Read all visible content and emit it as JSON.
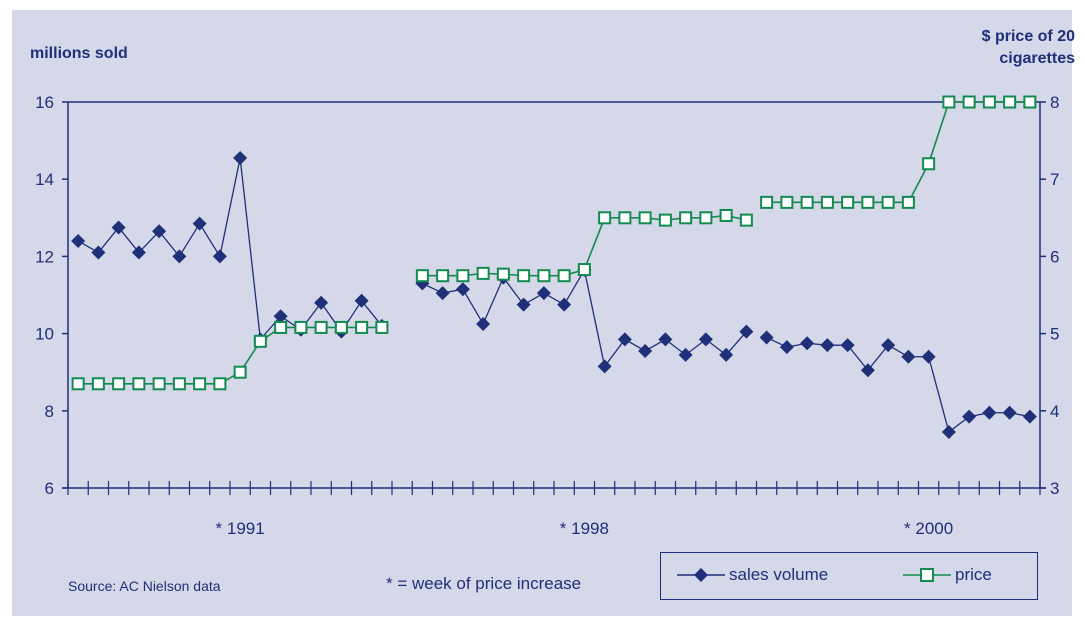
{
  "chart_data": {
    "type": "line",
    "left_axis_label": "millions sold",
    "right_axis_label": [
      "$ price of 20",
      "cigarettes"
    ],
    "left_ylim": [
      6,
      16
    ],
    "left_ticks": [
      "6",
      "8",
      "10",
      "12",
      "14",
      "16"
    ],
    "right_ylim": [
      3,
      8
    ],
    "right_ticks": [
      "3",
      "4",
      "5",
      "6",
      "7",
      "8"
    ],
    "x_labels": [
      {
        "index": 9,
        "label": "* 1991"
      },
      {
        "index": 26,
        "label": "* 1998"
      },
      {
        "index": 43,
        "label": "* 2000"
      }
    ],
    "grid": "horizontal",
    "segments": [
      {
        "x_start": 1,
        "sales": [
          12.4,
          12.1,
          12.75,
          12.1,
          12.65,
          12.0,
          12.85,
          12.0,
          14.55,
          9.85,
          10.45,
          10.1,
          10.8,
          10.05,
          10.85,
          10.2
        ],
        "price": [
          4.35,
          4.35,
          4.35,
          4.35,
          4.35,
          4.35,
          4.35,
          4.35,
          4.5,
          4.9,
          5.08,
          5.08,
          5.08,
          5.08,
          5.08,
          5.08
        ]
      },
      {
        "x_start": 18,
        "sales": [
          11.3,
          11.05,
          11.15,
          10.25,
          11.45,
          10.75,
          11.05,
          10.75,
          11.65,
          9.15,
          9.85,
          9.55,
          9.85,
          9.45,
          9.85,
          9.45,
          10.05
        ],
        "price": [
          5.75,
          5.75,
          5.75,
          5.78,
          5.77,
          5.75,
          5.75,
          5.75,
          5.83,
          6.5,
          6.5,
          6.5,
          6.47,
          6.5,
          6.5,
          6.53,
          6.47
        ]
      },
      {
        "x_start": 35,
        "sales": [
          9.9,
          9.65,
          9.75,
          9.7,
          9.7,
          9.05,
          9.7,
          9.4,
          9.4,
          7.45,
          7.85,
          7.95,
          7.95,
          7.85
        ],
        "price": [
          6.7,
          6.7,
          6.7,
          6.7,
          6.7,
          6.7,
          6.7,
          6.7,
          7.2,
          8.0,
          8.0,
          8.0,
          8.0,
          8.0
        ]
      }
    ],
    "legend": [
      "sales volume",
      "price"
    ],
    "colors": {
      "sales": "#1f2f78",
      "price": "#138a50",
      "axis": "#1f2f78",
      "background": "#d4d8e9"
    }
  },
  "source_note": "Source: AC Nielson data",
  "footnote": "* = week of price increase"
}
